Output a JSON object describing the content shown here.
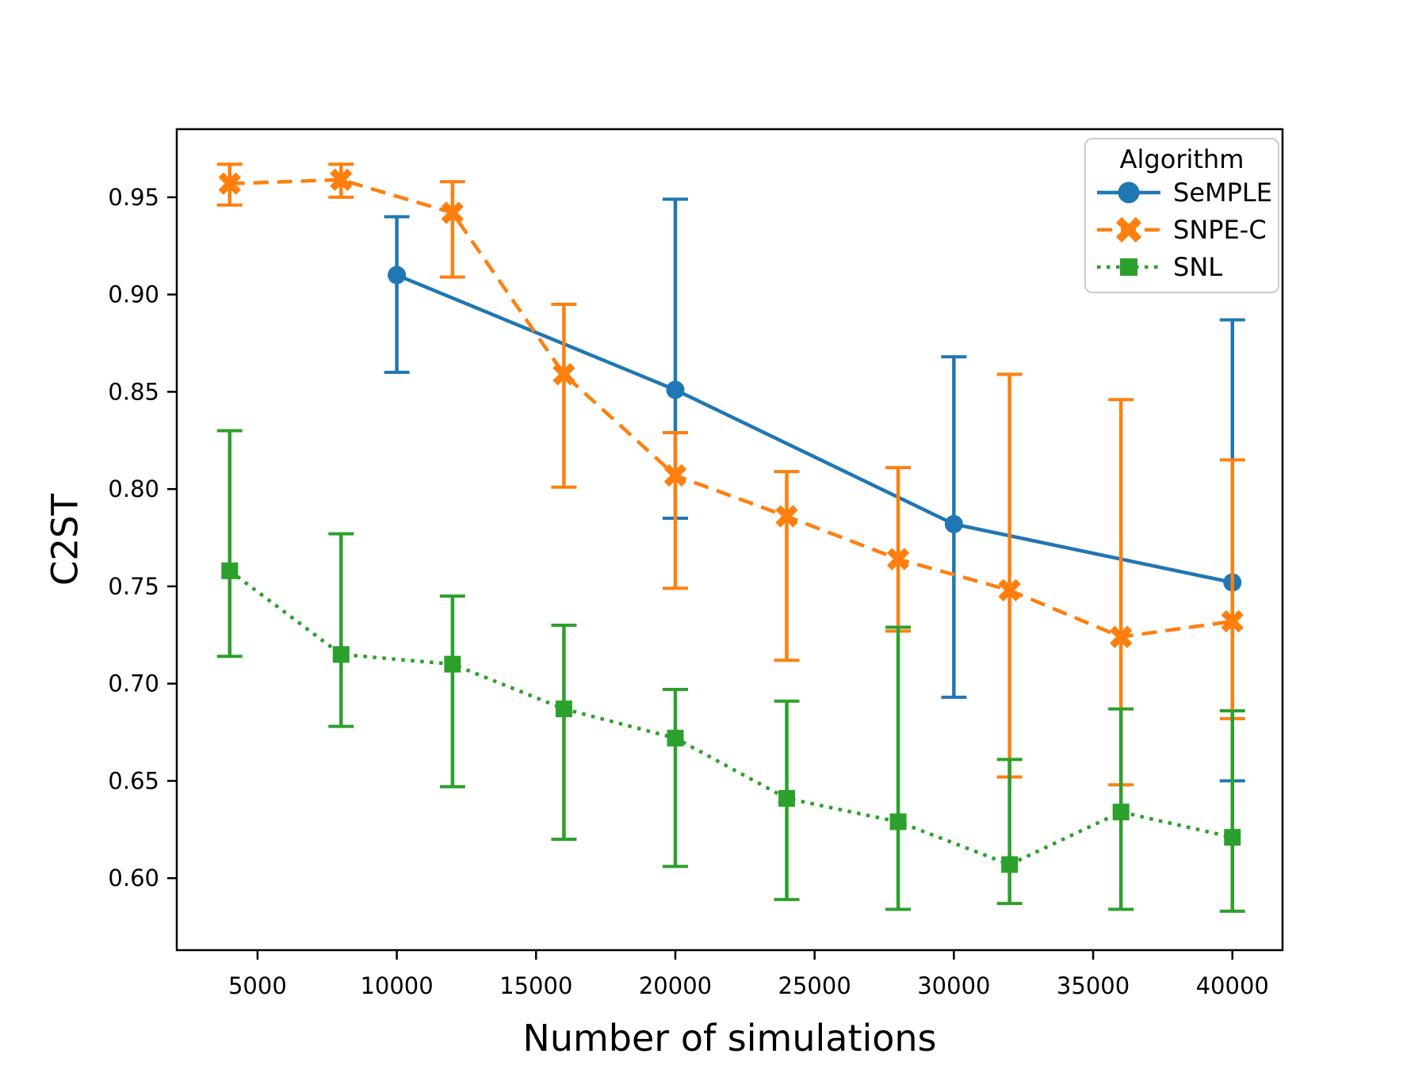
{
  "chart_data": {
    "type": "line",
    "title": "",
    "xlabel": "Number of simulations",
    "ylabel": "C2ST",
    "grid": false,
    "xlim": [
      2100,
      41800
    ],
    "ylim": [
      0.563,
      0.985
    ],
    "x_ticks": [
      5000,
      10000,
      15000,
      20000,
      25000,
      30000,
      35000,
      40000
    ],
    "x_tick_labels": [
      "5000",
      "10000",
      "15000",
      "20000",
      "25000",
      "30000",
      "35000",
      "40000"
    ],
    "y_ticks": [
      0.6,
      0.65,
      0.7,
      0.75,
      0.8,
      0.85,
      0.9,
      0.95
    ],
    "y_tick_labels": [
      "0.60",
      "0.65",
      "0.70",
      "0.75",
      "0.80",
      "0.85",
      "0.90",
      "0.95"
    ],
    "legend": {
      "title": "Algorithm",
      "position": "upper right"
    },
    "series": [
      {
        "name": "SeMPLE",
        "color": "#1f77b4",
        "marker": "circle",
        "line_style": "solid",
        "x": [
          10000,
          20000,
          30000,
          40000
        ],
        "y": [
          0.91,
          0.851,
          0.782,
          0.752
        ],
        "err_low": [
          0.86,
          0.785,
          0.693,
          0.65
        ],
        "err_high": [
          0.94,
          0.949,
          0.868,
          0.887
        ]
      },
      {
        "name": "SNPE-C",
        "color": "#ff7f0e",
        "marker": "x",
        "line_style": "dashed",
        "x": [
          4000,
          8000,
          12000,
          16000,
          20000,
          24000,
          28000,
          32000,
          36000,
          40000
        ],
        "y": [
          0.957,
          0.959,
          0.942,
          0.859,
          0.807,
          0.786,
          0.764,
          0.748,
          0.724,
          0.732
        ],
        "err_low": [
          0.946,
          0.95,
          0.909,
          0.801,
          0.749,
          0.712,
          0.727,
          0.652,
          0.648,
          0.682
        ],
        "err_high": [
          0.967,
          0.967,
          0.958,
          0.895,
          0.829,
          0.809,
          0.811,
          0.859,
          0.846,
          0.815
        ]
      },
      {
        "name": "SNL",
        "color": "#2ca02c",
        "marker": "square",
        "line_style": "dotted",
        "x": [
          4000,
          8000,
          12000,
          16000,
          20000,
          24000,
          28000,
          32000,
          36000,
          40000
        ],
        "y": [
          0.758,
          0.715,
          0.71,
          0.687,
          0.672,
          0.641,
          0.629,
          0.607,
          0.634,
          0.621
        ],
        "err_low": [
          0.714,
          0.678,
          0.647,
          0.62,
          0.606,
          0.589,
          0.584,
          0.587,
          0.584,
          0.583
        ],
        "err_high": [
          0.83,
          0.777,
          0.745,
          0.73,
          0.697,
          0.691,
          0.729,
          0.661,
          0.687,
          0.686
        ]
      }
    ]
  }
}
